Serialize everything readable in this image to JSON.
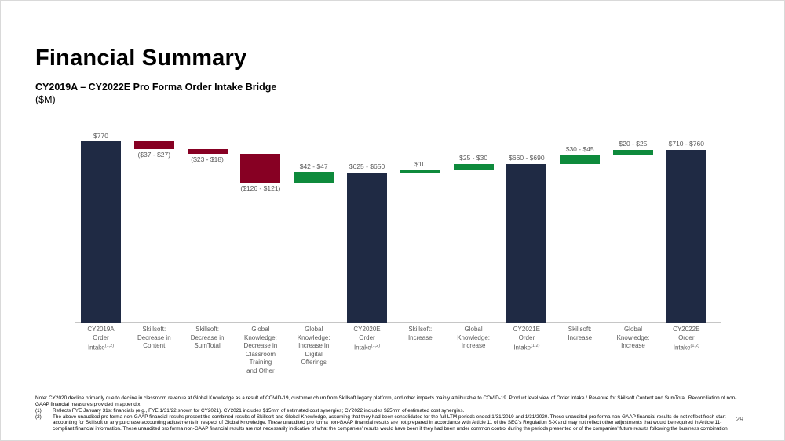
{
  "slide": {
    "title": "Financial Summary",
    "subtitle": "CY2019A – CY2022E Pro Forma Order Intake Bridge",
    "units": "($M)",
    "page_number": "29"
  },
  "chart_data": {
    "type": "bar",
    "subtype": "waterfall",
    "title": "CY2019A – CY2022E Pro Forma Order Intake Bridge",
    "units": "$M",
    "ylim": [
      0,
      800
    ],
    "grid": false,
    "legend": false,
    "colors": {
      "total": "#1f2a44",
      "decrease": "#870023",
      "increase": "#0e8a3c"
    },
    "axis_color": "#c6c6c6",
    "label_color": "#595959",
    "bars": [
      {
        "category_lines": [
          "CY2019A",
          "Order",
          "Intake"
        ],
        "category_sup": "(1,2)",
        "value_label": "$770",
        "label_position": "above",
        "kind": "total",
        "start": 0,
        "end": 770
      },
      {
        "category_lines": [
          "Skillsoft:",
          "Decrease in",
          "Content"
        ],
        "category_sup": "",
        "value_label": "($37 - $27)",
        "label_position": "below",
        "kind": "decrease",
        "start": 738,
        "end": 770
      },
      {
        "category_lines": [
          "Skillsoft:",
          "Decrease in",
          "SumTotal"
        ],
        "category_sup": "",
        "value_label": "($23 - $18)",
        "label_position": "below",
        "kind": "decrease",
        "start": 717.5,
        "end": 738
      },
      {
        "category_lines": [
          "Global",
          "Knowledge:",
          "Decrease in",
          "Classroom",
          "Training",
          "and Other"
        ],
        "category_sup": "",
        "value_label": "($126 - $121)",
        "label_position": "below",
        "kind": "decrease",
        "start": 594,
        "end": 717.5
      },
      {
        "category_lines": [
          "Global",
          "Knowledge:",
          "Increase in",
          "Digital",
          "Offerings"
        ],
        "category_sup": "",
        "value_label": "$42 - $47",
        "label_position": "above",
        "kind": "increase",
        "start": 594,
        "end": 638.5
      },
      {
        "category_lines": [
          "CY2020E",
          "Order",
          "Intake"
        ],
        "category_sup": "(1,2)",
        "value_label": "$625 - $650",
        "label_position": "above",
        "kind": "total",
        "start": 0,
        "end": 637.5
      },
      {
        "category_lines": [
          "Skillsoft:",
          "Increase"
        ],
        "category_sup": "",
        "value_label": "$10",
        "label_position": "above",
        "kind": "increase",
        "start": 637.5,
        "end": 647.5
      },
      {
        "category_lines": [
          "Global",
          "Knowledge:",
          "Increase"
        ],
        "category_sup": "",
        "value_label": "$25 - $30",
        "label_position": "above",
        "kind": "increase",
        "start": 647.5,
        "end": 675
      },
      {
        "category_lines": [
          "CY2021E",
          "Order",
          "Intake"
        ],
        "category_sup": "(1,2)",
        "value_label": "$660 - $690",
        "label_position": "above",
        "kind": "total",
        "start": 0,
        "end": 675
      },
      {
        "category_lines": [
          "Skillsoft:",
          "Increase"
        ],
        "category_sup": "",
        "value_label": "$30 - $45",
        "label_position": "above",
        "kind": "increase",
        "start": 675,
        "end": 712.5
      },
      {
        "category_lines": [
          "Global",
          "Knowledge:",
          "Increase"
        ],
        "category_sup": "",
        "value_label": "$20 - $25",
        "label_position": "above",
        "kind": "increase",
        "start": 712.5,
        "end": 735
      },
      {
        "category_lines": [
          "CY2022E",
          "Order",
          "Intake"
        ],
        "category_sup": "(1,2)",
        "value_label": "$710 - $760",
        "label_position": "above",
        "kind": "total",
        "start": 0,
        "end": 735
      }
    ]
  },
  "footnotes": {
    "note": "Note: CY2020 decline primarily due to decline in classroom revenue at Global Knowledge as a result of COVID-19, customer churn from Skillsoft legacy platform, and other impacts mainly attributable to COVID-19. Product level view of Order Intake / Revenue for Skillsoft Content and SumTotal. Reconciliation of non-GAAP financial measures provided in appendix.",
    "items": [
      {
        "num": "(1)",
        "text": "Reflects FYE January 31st financials (e.g., FYE 1/31/22 shown for CY2021). CY2021 includes $15mm of estimated cost synergies; CY2022 includes $25mm of estimated cost synergies."
      },
      {
        "num": "(2)",
        "text": "The above unaudited pro forma non-GAAP financial results present the combined results of Skillsoft and Global Knowledge, assuming that they had been consolidated for the full LTM periods ended 1/31/2019 and 1/31/2020. These unaudited pro forma non-GAAP financial results do not reflect fresh start accounting for Skillsoft or any purchase accounting adjustments in respect of Global Knowledge.  These unaudited pro forma non-GAAP financial results are not prepared in accordance with Article 11 of the SEC’s Regulation S-X and may not reflect other adjustments that would be required in Article 11-compliant financial information.  These unaudited pro forma non-GAAP financial results are not necessarily indicative of what the companies’ results would have been if they had been under common control during the periods presented or of the companies’ future results following the business combination."
      }
    ]
  }
}
